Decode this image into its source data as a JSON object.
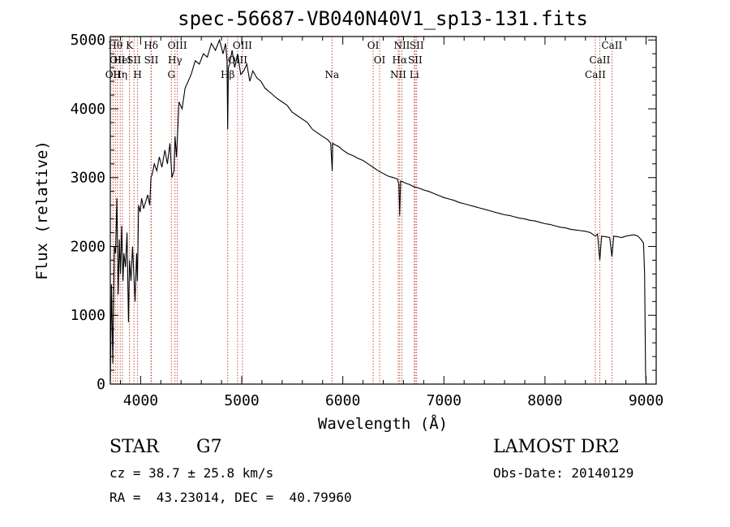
{
  "chart_data": {
    "type": "line",
    "title": "spec-56687-VB040N40V1_sp13-131.fits",
    "xlabel": "Wavelength (Å)",
    "ylabel": "Flux (relative)",
    "xlim": [
      3700,
      9100
    ],
    "ylim": [
      0,
      5050
    ],
    "xticks": [
      4000,
      5000,
      6000,
      7000,
      8000,
      9000
    ],
    "yticks": [
      0,
      1000,
      2000,
      3000,
      4000,
      5000
    ],
    "grid": false,
    "line_color": "#000000",
    "marker_color": "#c0392b",
    "series": [
      {
        "x": [
          3700,
          3712,
          3725,
          3740,
          3752,
          3765,
          3778,
          3790,
          3800,
          3812,
          3825,
          3835,
          3850,
          3865,
          3880,
          3890,
          3905,
          3920,
          3933,
          3945,
          3960,
          3968,
          3980,
          3995,
          4010,
          4030,
          4050,
          4070,
          4090,
          4102,
          4115,
          4135,
          4160,
          4185,
          4210,
          4240,
          4265,
          4290,
          4310,
          4330,
          4340,
          4355,
          4380,
          4410,
          4440,
          4470,
          4500,
          4540,
          4580,
          4620,
          4660,
          4700,
          4740,
          4780,
          4815,
          4840,
          4855,
          4861,
          4868,
          4880,
          4905,
          4930,
          4960,
          4990,
          5020,
          5050,
          5080,
          5110,
          5150,
          5190,
          5230,
          5270,
          5310,
          5350,
          5400,
          5450,
          5500,
          5550,
          5600,
          5650,
          5700,
          5750,
          5800,
          5850,
          5880,
          5890,
          5895,
          5900,
          5920,
          5960,
          6000,
          6050,
          6100,
          6150,
          6200,
          6250,
          6300,
          6350,
          6400,
          6450,
          6500,
          6540,
          6555,
          6563,
          6572,
          6590,
          6620,
          6660,
          6700,
          6750,
          6800,
          6850,
          6900,
          6950,
          7000,
          7050,
          7100,
          7150,
          7200,
          7250,
          7300,
          7350,
          7400,
          7450,
          7500,
          7550,
          7600,
          7650,
          7700,
          7750,
          7800,
          7850,
          7900,
          7950,
          8000,
          8050,
          8100,
          8150,
          8200,
          8250,
          8300,
          8350,
          8400,
          8450,
          8498,
          8520,
          8542,
          8560,
          8600,
          8640,
          8662,
          8680,
          8720,
          8760,
          8800,
          8840,
          8880,
          8920,
          8950,
          8975,
          8985,
          8990,
          8995,
          9000
        ],
        "y": [
          0,
          1450,
          300,
          2000,
          1900,
          2700,
          1300,
          2100,
          1600,
          2300,
          1500,
          1900,
          1700,
          2200,
          900,
          1800,
          1500,
          2000,
          1600,
          1200,
          1900,
          1500,
          2600,
          2500,
          2700,
          2550,
          2650,
          2750,
          2600,
          3000,
          3050,
          3200,
          3100,
          3300,
          3150,
          3400,
          3200,
          3500,
          3000,
          3100,
          3600,
          3300,
          4100,
          4000,
          4300,
          4400,
          4500,
          4700,
          4650,
          4800,
          4750,
          4950,
          4850,
          5000,
          4800,
          4950,
          4700,
          3700,
          4600,
          4650,
          4850,
          4600,
          4800,
          4500,
          4550,
          4650,
          4400,
          4550,
          4450,
          4400,
          4300,
          4250,
          4200,
          4150,
          4100,
          4050,
          3950,
          3900,
          3850,
          3800,
          3700,
          3650,
          3600,
          3550,
          3500,
          3250,
          3100,
          3500,
          3480,
          3450,
          3400,
          3350,
          3320,
          3280,
          3250,
          3200,
          3150,
          3100,
          3060,
          3020,
          3000,
          2980,
          2900,
          2450,
          2950,
          2940,
          2920,
          2900,
          2870,
          2850,
          2820,
          2800,
          2770,
          2740,
          2710,
          2690,
          2670,
          2640,
          2620,
          2600,
          2580,
          2560,
          2540,
          2520,
          2500,
          2480,
          2460,
          2450,
          2430,
          2410,
          2400,
          2380,
          2370,
          2350,
          2330,
          2320,
          2300,
          2280,
          2270,
          2250,
          2240,
          2230,
          2220,
          2200,
          2150,
          2180,
          1800,
          2150,
          2140,
          2130,
          1850,
          2150,
          2140,
          2130,
          2150,
          2160,
          2170,
          2150,
          2100,
          2050,
          1600,
          900,
          200,
          0
        ]
      }
    ],
    "line_markers": [
      {
        "x": 3727,
        "label": "OII",
        "row": 2
      },
      {
        "x": 3750,
        "label": "Hθ",
        "row": 0
      },
      {
        "x": 3771,
        "label": "OII",
        "row": 1
      },
      {
        "x": 3798,
        "label": "Hη",
        "row": 2
      },
      {
        "x": 3820,
        "label": "HeI",
        "row": 1
      },
      {
        "x": 3889,
        "label": "K",
        "row": 0
      },
      {
        "x": 3934,
        "label": "SII",
        "row": 1
      },
      {
        "x": 3970,
        "label": "H",
        "row": 2
      },
      {
        "x": 4102,
        "label": "Hδ",
        "row": 0
      },
      {
        "x": 4105,
        "label": "SII",
        "row": 1
      },
      {
        "x": 4304,
        "label": "G",
        "row": 2
      },
      {
        "x": 4340,
        "label": "Hγ",
        "row": 1
      },
      {
        "x": 4363,
        "label": "OIII",
        "row": 0
      },
      {
        "x": 4861,
        "label": "Hβ",
        "row": 2
      },
      {
        "x": 4959,
        "label": "OIII",
        "row": 1
      },
      {
        "x": 5007,
        "label": "OIII",
        "row": 0
      },
      {
        "x": 5893,
        "label": "Na",
        "row": 2
      },
      {
        "x": 6300,
        "label": "OI",
        "row": 0
      },
      {
        "x": 6364,
        "label": "OI",
        "row": 1
      },
      {
        "x": 6548,
        "label": "NII",
        "row": 2
      },
      {
        "x": 6563,
        "label": "Hα",
        "row": 1
      },
      {
        "x": 6584,
        "label": "NII",
        "row": 0
      },
      {
        "x": 6707,
        "label": "Li",
        "row": 2
      },
      {
        "x": 6716,
        "label": "SII",
        "row": 1
      },
      {
        "x": 6731,
        "label": "SII",
        "row": 0
      },
      {
        "x": 8498,
        "label": "CaII",
        "row": 2
      },
      {
        "x": 8542,
        "label": "CaII",
        "row": 1
      },
      {
        "x": 8662,
        "label": "CaII",
        "row": 0
      }
    ]
  },
  "info": {
    "object_class": "STAR",
    "subclass": "G7",
    "survey": "LAMOST DR2",
    "cz": "cz = 38.7 ± 25.8 km/s",
    "obs_date": "Obs-Date: 20140129",
    "coords": "RA =  43.23014, DEC =  40.79960"
  }
}
